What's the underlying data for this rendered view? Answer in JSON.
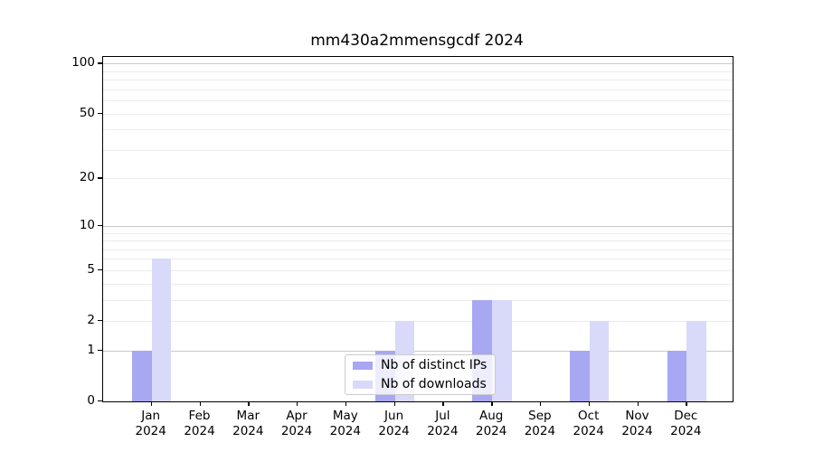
{
  "title": "mm430a2mmensgcdf 2024",
  "chart_data": {
    "type": "bar",
    "categories": [
      "Jan",
      "Feb",
      "Mar",
      "Apr",
      "May",
      "Jun",
      "Jul",
      "Aug",
      "Sep",
      "Oct",
      "Nov",
      "Dec"
    ],
    "year_label": "2024",
    "series": [
      {
        "name": "Nb of distinct IPs",
        "color": "#a7a7f2",
        "values": [
          1,
          0,
          0,
          0,
          0,
          1,
          0,
          3,
          0,
          1,
          0,
          1
        ]
      },
      {
        "name": "Nb of downloads",
        "color": "#d9d9f9",
        "values": [
          6,
          0,
          0,
          0,
          0,
          2,
          0,
          3,
          0,
          2,
          0,
          2
        ]
      }
    ],
    "y_scale": "log1p",
    "ylim": [
      0,
      109
    ],
    "y_tick_labels": [
      0,
      1,
      2,
      5,
      10,
      20,
      50,
      100
    ],
    "y_major_gridlines": [
      1,
      10,
      100
    ],
    "y_minor_gridlines": [
      2,
      3,
      4,
      5,
      6,
      7,
      8,
      9,
      20,
      30,
      40,
      50,
      60,
      70,
      80,
      90
    ],
    "grid": true,
    "legend_position": "lower center"
  }
}
